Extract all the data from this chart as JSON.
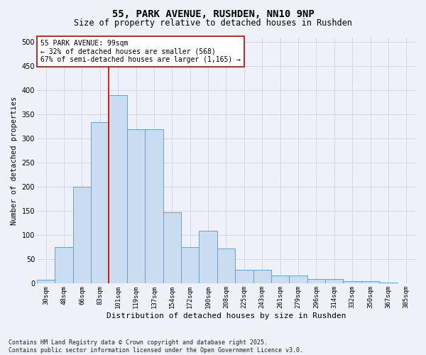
{
  "title_line1": "55, PARK AVENUE, RUSHDEN, NN10 9NP",
  "title_line2": "Size of property relative to detached houses in Rushden",
  "xlabel": "Distribution of detached houses by size in Rushden",
  "ylabel": "Number of detached properties",
  "categories": [
    "30sqm",
    "48sqm",
    "66sqm",
    "83sqm",
    "101sqm",
    "119sqm",
    "137sqm",
    "154sqm",
    "172sqm",
    "190sqm",
    "208sqm",
    "225sqm",
    "243sqm",
    "261sqm",
    "279sqm",
    "296sqm",
    "314sqm",
    "332sqm",
    "350sqm",
    "367sqm",
    "385sqm"
  ],
  "values": [
    8,
    76,
    200,
    335,
    390,
    320,
    320,
    148,
    75,
    110,
    73,
    28,
    28,
    17,
    17,
    10,
    10,
    5,
    5,
    2,
    1
  ],
  "bar_color": "#c9dcf0",
  "bar_edge_color": "#6a9fd0",
  "grid_color": "#d0d8e8",
  "vline_color": "#cc0000",
  "vline_pos": 4.5,
  "annotation_text": "55 PARK AVENUE: 99sqm\n← 32% of detached houses are smaller (568)\n67% of semi-detached houses are larger (1,165) →",
  "annotation_box_color": "#ffffff",
  "annotation_border_color": "#cc0000",
  "ylim": [
    0,
    510
  ],
  "yticks": [
    0,
    50,
    100,
    150,
    200,
    250,
    300,
    350,
    400,
    450,
    500
  ],
  "footnote": "Contains HM Land Registry data © Crown copyright and database right 2025.\nContains public sector information licensed under the Open Government Licence v3.0.",
  "bg_color": "#eef2f8",
  "title_fontsize": 10,
  "subtitle_fontsize": 8.5,
  "ylabel_fontsize": 7.5,
  "xlabel_fontsize": 8,
  "tick_fontsize": 6.5,
  "annot_fontsize": 7,
  "footnote_fontsize": 6
}
